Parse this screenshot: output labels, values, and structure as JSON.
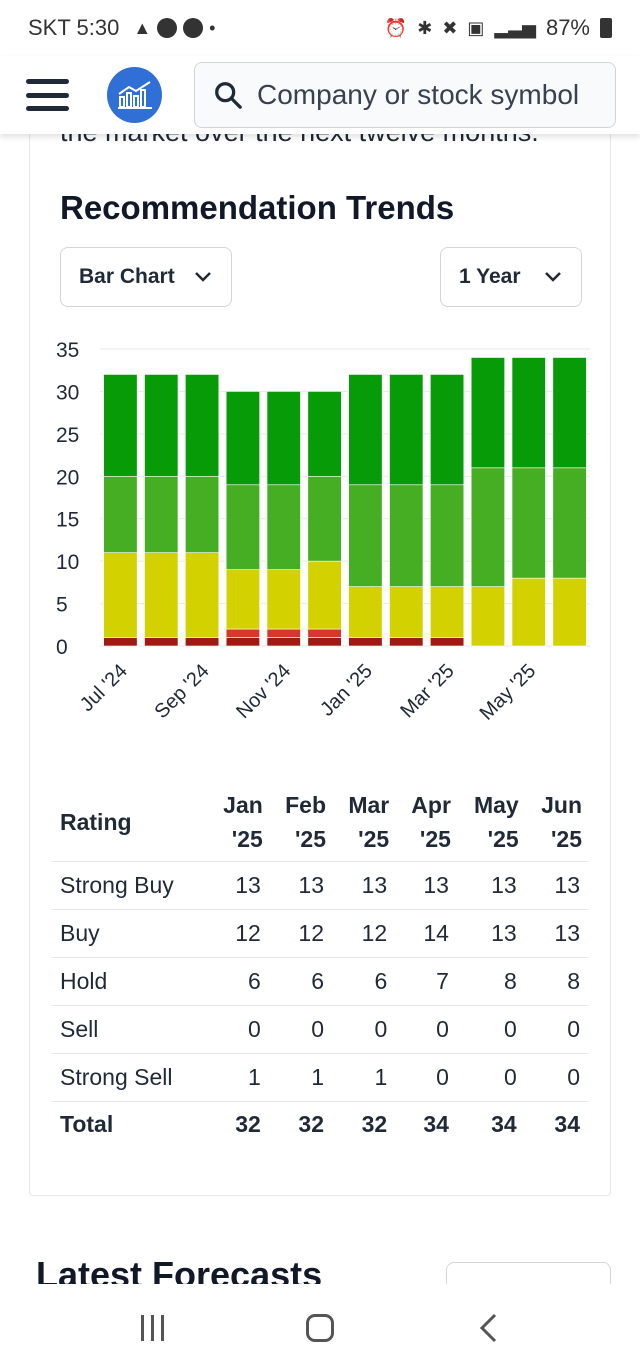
{
  "status_bar": {
    "carrier_time": "SKT 5:30",
    "battery": "87%",
    "icons": [
      "game-controller-icon",
      "talk-icon",
      "c-app-icon",
      "dot-icon",
      "alarm-icon",
      "bluetooth-icon",
      "mute-icon",
      "5g-icon",
      "signal-icon",
      "battery-icon"
    ]
  },
  "header": {
    "search_placeholder": "Company or stock symbol"
  },
  "intro_text": "the market over the next twelve months.",
  "section_title": "Recommendation Trends",
  "controls": {
    "chart_type": "Bar Chart",
    "range": "1 Year"
  },
  "colors": {
    "strong_buy": "#079b07",
    "buy": "#46ae23",
    "hold": "#d3d100",
    "sell": "#d8372c",
    "strong_sell": "#9e1a13",
    "brand": "#2f6fd6"
  },
  "chart_data": {
    "type": "bar",
    "stacked": true,
    "categories": [
      "Jul '24",
      "Aug '24",
      "Sep '24",
      "Oct '24",
      "Nov '24",
      "Dec '24",
      "Jan '25",
      "Feb '25",
      "Mar '25",
      "Apr '25",
      "May '25",
      "Jun '25"
    ],
    "x_tick_labels": [
      "Jul '24",
      "Sep '24",
      "Nov '24",
      "Jan '25",
      "Mar '25",
      "May '25"
    ],
    "series": [
      {
        "key": "strong_sell",
        "values": [
          1,
          1,
          1,
          1,
          1,
          1,
          1,
          1,
          1,
          0,
          0,
          0
        ]
      },
      {
        "key": "sell",
        "values": [
          0,
          0,
          0,
          1,
          1,
          1,
          0,
          0,
          0,
          0,
          0,
          0
        ]
      },
      {
        "key": "hold",
        "values": [
          10,
          10,
          10,
          7,
          7,
          8,
          6,
          6,
          6,
          7,
          8,
          8
        ]
      },
      {
        "key": "buy",
        "values": [
          9,
          9,
          9,
          10,
          10,
          10,
          12,
          12,
          12,
          14,
          13,
          13
        ]
      },
      {
        "key": "strong_buy",
        "values": [
          12,
          12,
          12,
          11,
          11,
          10,
          13,
          13,
          13,
          13,
          13,
          13
        ]
      }
    ],
    "y_ticks": [
      0,
      5,
      10,
      15,
      20,
      25,
      30,
      35
    ],
    "ylim": [
      0,
      35
    ],
    "grid": true,
    "legend": "none"
  },
  "table": {
    "header_label": "Rating",
    "months": [
      {
        "line1": "Jan",
        "line2": "'25"
      },
      {
        "line1": "Feb",
        "line2": "'25"
      },
      {
        "line1": "Mar",
        "line2": "'25"
      },
      {
        "line1": "Apr",
        "line2": "'25"
      },
      {
        "line1": "May",
        "line2": "'25"
      },
      {
        "line1": "Jun",
        "line2": "'25"
      }
    ],
    "rows": [
      {
        "label": "Strong Buy",
        "values": [
          "13",
          "13",
          "13",
          "13",
          "13",
          "13"
        ]
      },
      {
        "label": "Buy",
        "values": [
          "12",
          "12",
          "12",
          "14",
          "13",
          "13"
        ]
      },
      {
        "label": "Hold",
        "values": [
          "6",
          "6",
          "6",
          "7",
          "8",
          "8"
        ]
      },
      {
        "label": "Sell",
        "values": [
          "0",
          "0",
          "0",
          "0",
          "0",
          "0"
        ]
      },
      {
        "label": "Strong Sell",
        "values": [
          "1",
          "1",
          "1",
          "0",
          "0",
          "0"
        ]
      },
      {
        "label": "Total",
        "values": [
          "32",
          "32",
          "32",
          "34",
          "34",
          "34"
        ]
      }
    ]
  },
  "next_section_title": "Latest Forecasts"
}
